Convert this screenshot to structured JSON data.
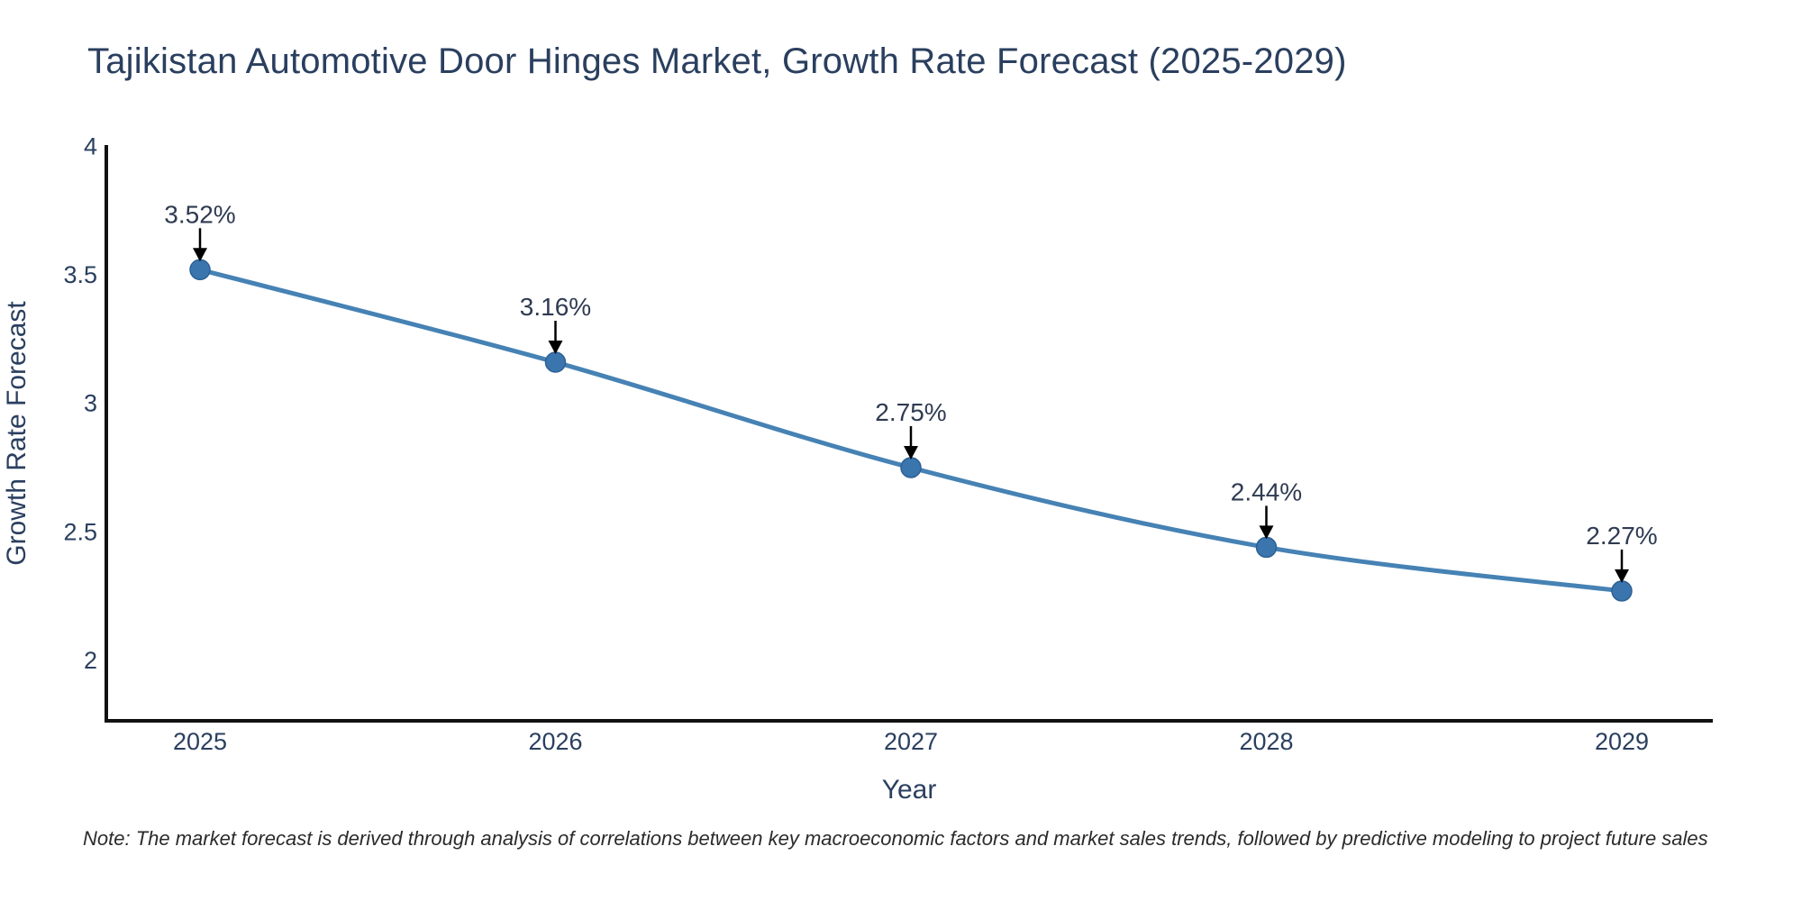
{
  "title": "Tajikistan Automotive Door Hinges Market, Growth Rate Forecast (2025-2029)",
  "note": "Note: The market forecast is derived through analysis of correlations between key macroeconomic factors and market sales trends, followed by predictive modeling to project future sales",
  "colors": {
    "background": "#ffffff",
    "axis": "#111111",
    "tick_text": "#2a3f5f",
    "axis_title_text": "#2a3f5f",
    "title_text": "#2a3f5f",
    "line": "#4682b4",
    "marker_fill": "#3a75ad",
    "marker_stroke": "#2d6096",
    "arrow": "#000000",
    "annotation_text": "#2f3b52",
    "note_text": "#2b2b2b"
  },
  "chart_data": {
    "type": "line",
    "title": "Tajikistan Automotive Door Hinges Market, Growth Rate Forecast (2025-2029)",
    "xlabel": "Year",
    "ylabel": "Growth Rate Forecast",
    "x": [
      2025,
      2026,
      2027,
      2028,
      2029
    ],
    "x_tick_labels": [
      "2025",
      "2026",
      "2027",
      "2028",
      "2029"
    ],
    "series": [
      {
        "name": "Growth Rate Forecast",
        "values": [
          3.52,
          3.16,
          2.75,
          2.44,
          2.27
        ]
      }
    ],
    "point_labels": [
      "3.52%",
      "3.16%",
      "2.75%",
      "2.44%",
      "2.27%"
    ],
    "y_ticks": [
      4,
      3.5,
      3,
      2.5,
      2
    ],
    "y_tick_labels": [
      "4",
      "3.5",
      "3",
      "2.5",
      "2"
    ],
    "ylim": [
      1.76,
      4.0
    ],
    "grid": false,
    "legend": "none",
    "line_shape": "spline",
    "marker": "circle",
    "annotations_have_arrows": true
  }
}
